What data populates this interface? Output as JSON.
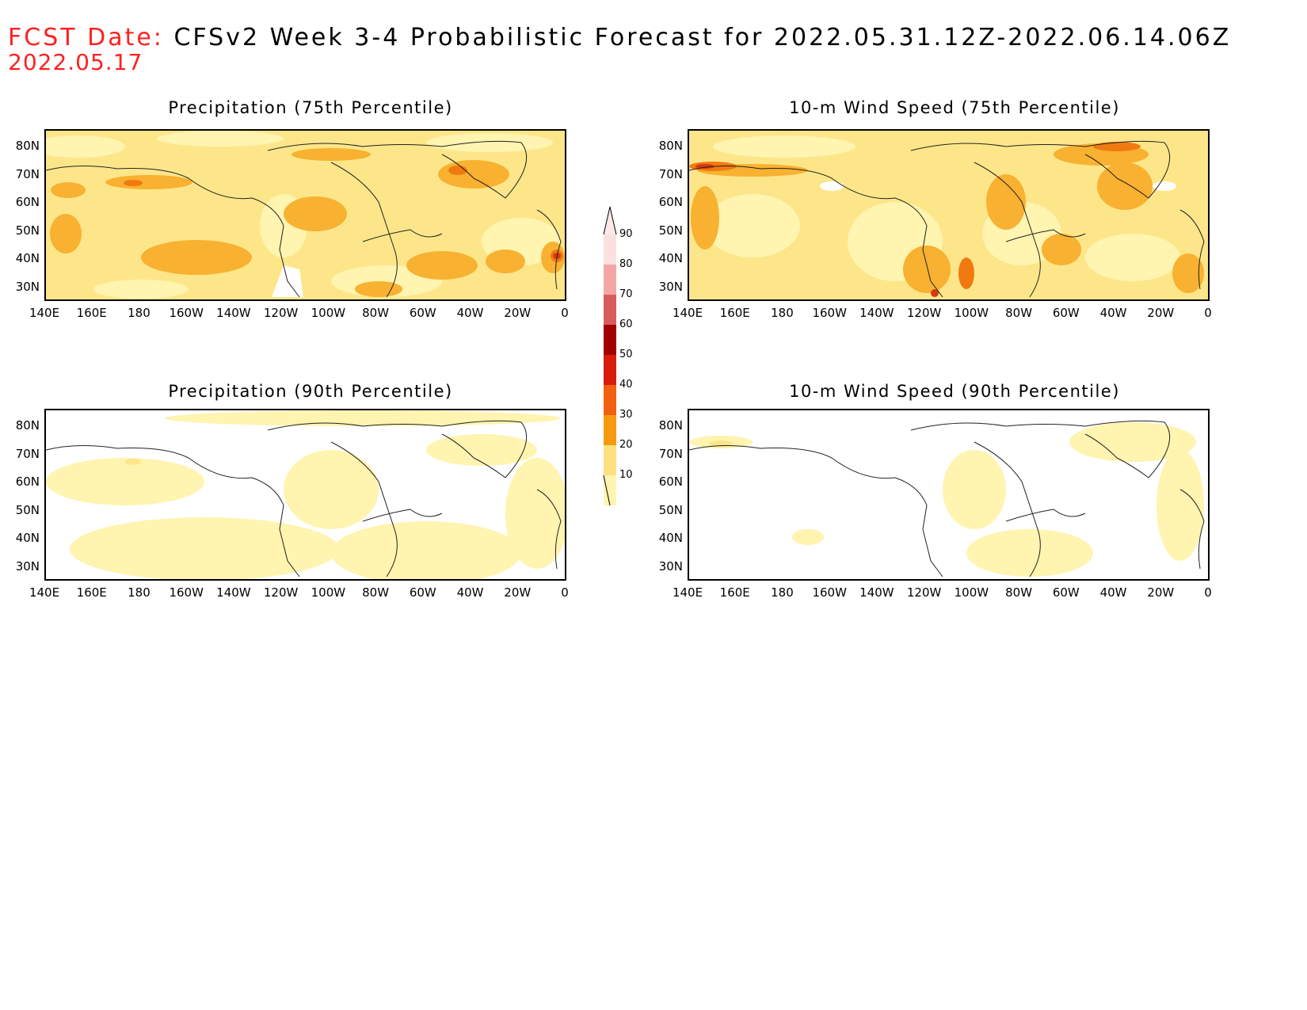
{
  "header": {
    "fcst_label": "FCST Date:",
    "title": "CFSv2 Week 3-4 Probabilistic Forecast for 2022.05.31.12Z-2022.06.14.06Z",
    "fcst_date": "2022.05.17"
  },
  "panels": [
    {
      "title": "Precipitation (75th Percentile)"
    },
    {
      "title": "10-m Wind Speed (75th Percentile)"
    },
    {
      "title": "Precipitation (90th Percentile)"
    },
    {
      "title": "10-m Wind Speed (90th Percentile)"
    }
  ],
  "axes": {
    "lat_labels": [
      "80N",
      "70N",
      "60N",
      "50N",
      "40N",
      "30N"
    ],
    "lon_labels": [
      "140E",
      "160E",
      "180",
      "160W",
      "140W",
      "120W",
      "100W",
      "80W",
      "60W",
      "40W",
      "20W",
      "0"
    ]
  },
  "colorbar": {
    "labels": [
      "90",
      "80",
      "70",
      "60",
      "50",
      "40",
      "30",
      "20",
      "10"
    ],
    "colors": [
      "#fbe0e0",
      "#f4a6a6",
      "#d95c5c",
      "#a00000",
      "#d81c0c",
      "#f06010",
      "#f59a10",
      "#fde080",
      "#fff4b0"
    ]
  },
  "colors": {
    "very_light": "#fff8c4",
    "light": "#fde68a",
    "medium": "#f8b130",
    "strong": "#f07a10",
    "deep": "#d63a10"
  }
}
